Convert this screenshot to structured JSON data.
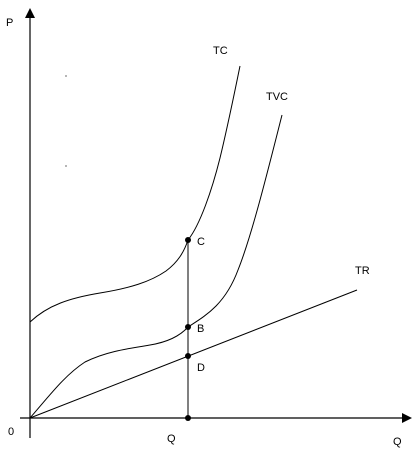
{
  "axes": {
    "y_label": "P",
    "x_label": "Q",
    "origin_label": "0"
  },
  "curves": {
    "tc_label": "TC",
    "tvc_label": "TVC",
    "tr_label": "TR"
  },
  "points": {
    "c": "C",
    "b": "B",
    "d": "D",
    "q": "Q"
  },
  "colors": {
    "line": "#000000",
    "background": "#ffffff"
  }
}
